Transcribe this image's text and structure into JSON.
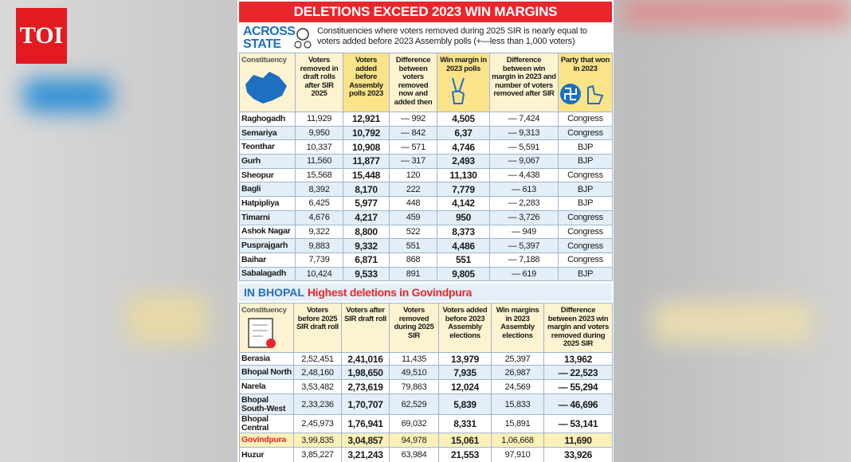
{
  "logo": "TOI",
  "title": "DELETIONS EXCEED 2023 WIN MARGINS",
  "state_section": {
    "label": "ACROSS STATE",
    "description": "Constituencies where voters removed during 2025 SIR is nearly equal to voters added before 2023 Assembly polls (+—less than 1,000 voters)"
  },
  "table1": {
    "columns": [
      "Constituency",
      "Voters removed in draft rolls after SIR 2025",
      "Voters added before Assembly polls 2023",
      "Difference between voters removed now and added then",
      "Win margin in 2023 polls",
      "Difference between win margin in 2023 and number of voters removed after SIR",
      "Party that won in 2023"
    ],
    "rows": [
      [
        "Raghogadh",
        "11,929",
        "12,921",
        "— 992",
        "4,505",
        "— 7,424",
        "Congress"
      ],
      [
        "Semariya",
        "9,950",
        "10,792",
        "— 842",
        "6,37",
        "— 9,313",
        "Congress"
      ],
      [
        "Teonthar",
        "10,337",
        "10,908",
        "— 571",
        "4,746",
        "— 5,591",
        "BJP"
      ],
      [
        "Gurh",
        "11,560",
        "11,877",
        "— 317",
        "2,493",
        "— 9,067",
        "BJP"
      ],
      [
        "Sheopur",
        "15,568",
        "15,448",
        "120",
        "11,130",
        "— 4,438",
        "Congress"
      ],
      [
        "Bagli",
        "8,392",
        "8,170",
        "222",
        "7,779",
        "— 613",
        "BJP"
      ],
      [
        "Hatpipliya",
        "6,425",
        "5,977",
        "448",
        "4,142",
        "— 2,283",
        "BJP"
      ],
      [
        "Timarni",
        "4,676",
        "4,217",
        "459",
        "950",
        "— 3,726",
        "Congress"
      ],
      [
        "Ashok Nagar",
        "9,322",
        "8,800",
        "522",
        "8,373",
        "— 949",
        "Congress"
      ],
      [
        "Pusprajgarh",
        "9,883",
        "9,332",
        "551",
        "4,486",
        "— 5,397",
        "Congress"
      ],
      [
        "Baihar",
        "7,739",
        "6,871",
        "868",
        "551",
        "— 7,188",
        "Congress"
      ],
      [
        "Sabalagadh",
        "10,424",
        "9,533",
        "891",
        "9,805",
        "— 619",
        "BJP"
      ]
    ]
  },
  "bhopal_section": {
    "label": "IN BHOPAL",
    "subtitle": "Highest deletions in Govindpura"
  },
  "table2": {
    "columns": [
      "Constituency",
      "Voters before 2025 SIR draft roll",
      "Voters after SIR draft roll",
      "Voters removed during 2025 SIR",
      "Voters added before 2023 Assembly elections",
      "Win margins in 2023 Assembly elections",
      "Difference between 2023 win margin and voters removed during 2025 SIR"
    ],
    "rows": [
      [
        "Berasia",
        "2,52,451",
        "2,41,016",
        "11,435",
        "13,979",
        "25,397",
        "13,962"
      ],
      [
        "Bhopal North",
        "2,48,160",
        "1,98,650",
        "49,510",
        "7,935",
        "26,987",
        "— 22,523"
      ],
      [
        "Narela",
        "3,53,482",
        "2,73,619",
        "79,863",
        "12,024",
        "24,569",
        "— 55,294"
      ],
      [
        "Bhopal South-West",
        "2,33,236",
        "1,70,707",
        "62,529",
        "5,839",
        "15,833",
        "— 46,696"
      ],
      [
        "Bhopal Central",
        "2,45,973",
        "1,76,941",
        "69,032",
        "8,331",
        "15,891",
        "— 53,141"
      ],
      [
        "Govindpura",
        "3,99,835",
        "3,04,857",
        "94,978",
        "15,061",
        "1,06,668",
        "11,690"
      ],
      [
        "Huzur",
        "3,85,227",
        "3,21,243",
        "63,984",
        "21,553",
        "97,910",
        "33,926"
      ]
    ]
  }
}
